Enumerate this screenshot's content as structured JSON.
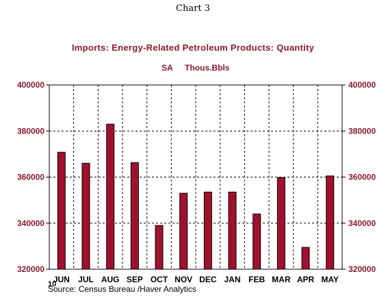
{
  "caption": "Chart 3",
  "chart_data": {
    "type": "bar",
    "title": "Imports: Energy-Related Petroleum Products: Quantity",
    "subtitle_left": "SA",
    "subtitle_right": "Thous.Bbls",
    "categories": [
      "JUN",
      "JUL",
      "AUG",
      "SEP",
      "OCT",
      "NOV",
      "DEC",
      "JAN",
      "FEB",
      "MAR",
      "APR",
      "MAY"
    ],
    "year_label": "10",
    "values": [
      370800,
      366000,
      383000,
      366300,
      339000,
      353000,
      353500,
      353500,
      344000,
      359800,
      329500,
      360500
    ],
    "ylim": [
      320000,
      400000
    ],
    "yticks": [
      320000,
      340000,
      360000,
      380000,
      400000
    ],
    "ytick_labels": [
      "320000",
      "340000",
      "360000",
      "380000",
      "400000"
    ],
    "grid": true,
    "bar_color": "#a0112d",
    "source": "Source:  Census Bureau /Haver Analytics"
  }
}
